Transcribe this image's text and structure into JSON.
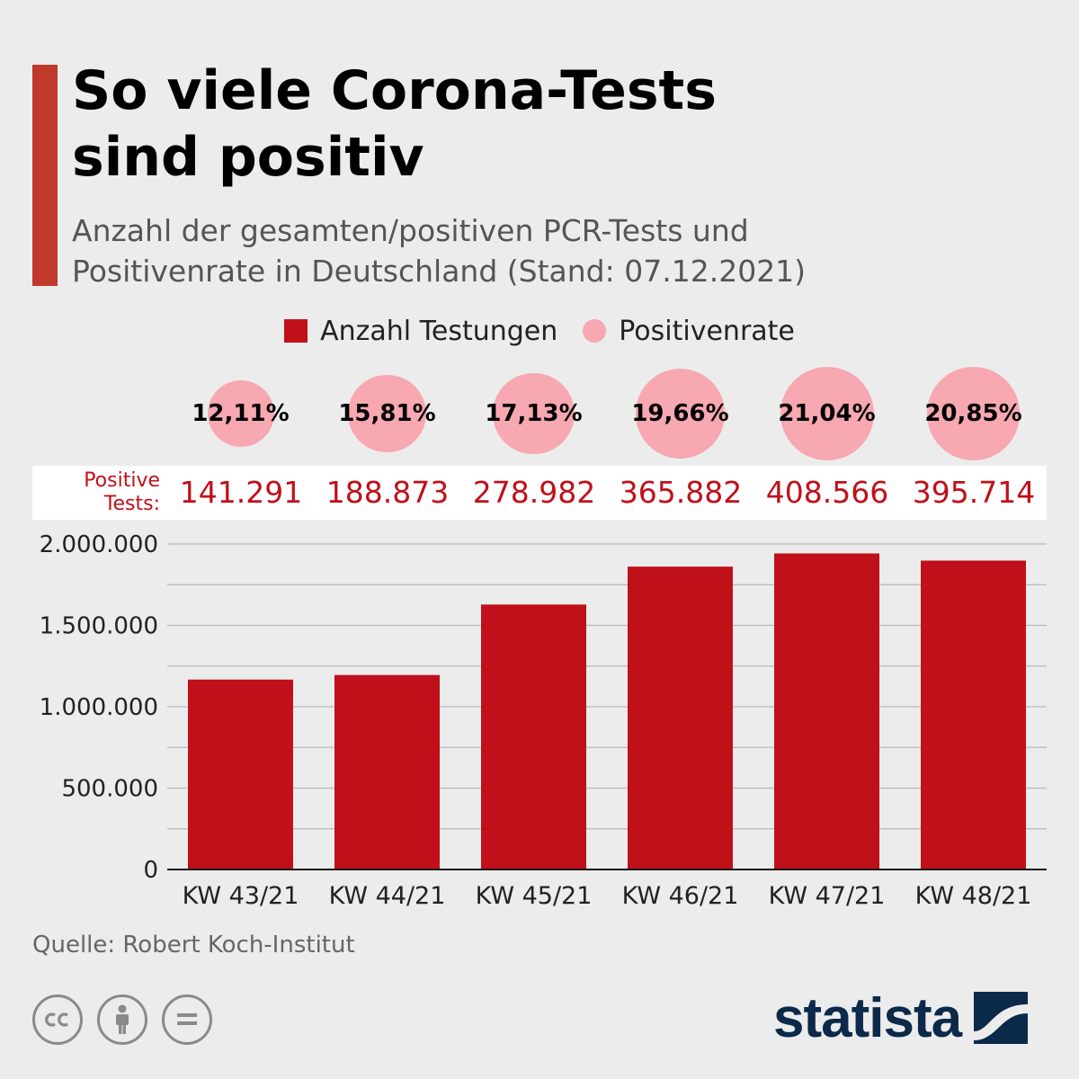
{
  "header": {
    "title_line1": "So viele Corona-Tests",
    "title_line2": "sind positiv",
    "subtitle_line1": "Anzahl der gesamten/positiven PCR-Tests und",
    "subtitle_line2": "Positivenrate in Deutschland (Stand: 07.12.2021)"
  },
  "legend": {
    "tests_label": "Anzahl Testungen",
    "rate_label": "Positivenrate"
  },
  "positive_tests": {
    "caption_line1": "Positive",
    "caption_line2": "Tests:"
  },
  "footer": {
    "source": "Quelle: Robert Koch-Institut",
    "brand": "statista"
  },
  "colors": {
    "bar": "#c0101a",
    "bubble": "#f7a8b0",
    "accent": "#c0392b",
    "positive_text": "#c0101a"
  },
  "icons": [
    "cc-icon",
    "attribution-icon",
    "no-derivatives-icon",
    "statista-logo-icon"
  ],
  "chart_data": {
    "type": "bar",
    "categories": [
      "KW 43/21",
      "KW 44/21",
      "KW 45/21",
      "KW 46/21",
      "KW 47/21",
      "KW 48/21"
    ],
    "values": [
      1167000,
      1195000,
      1628000,
      1861000,
      1942000,
      1898000
    ],
    "positive_tests": [
      "141.291",
      "188.873",
      "278.982",
      "365.882",
      "408.566",
      "395.714"
    ],
    "positive_rate": [
      "12,11%",
      "15,81%",
      "17,13%",
      "19,66%",
      "21,04%",
      "20,85%"
    ],
    "positive_rate_values": [
      12.11,
      15.81,
      17.13,
      19.66,
      21.04,
      20.85
    ],
    "yticks": [
      "0",
      "500.000",
      "1.000.000",
      "1.500.000",
      "2.000.000"
    ],
    "ylim": [
      0,
      2000000
    ],
    "grid": true
  }
}
